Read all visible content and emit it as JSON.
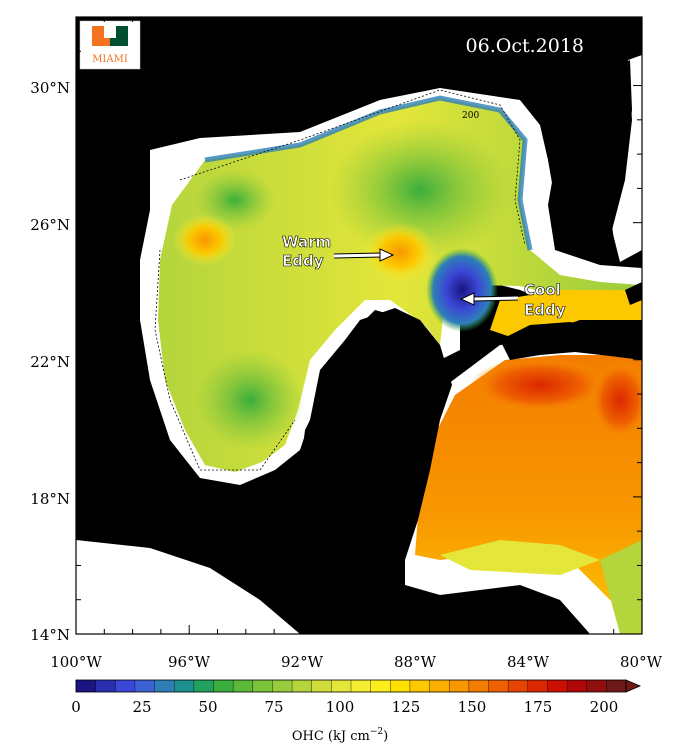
{
  "date": "06.Oct.2018",
  "logo": {
    "letter": "U",
    "text": "MIAMI"
  },
  "lat_ticks": [
    "30°N",
    "26°N",
    "22°N",
    "18°N",
    "14°N"
  ],
  "lon_ticks": [
    "100°W",
    "96°W",
    "92°W",
    "88°W",
    "84°W",
    "80°W"
  ],
  "annotations": {
    "warm_line1": "Warm",
    "warm_line2": "Eddy",
    "cool_line1": "Cool",
    "cool_line2": "Eddy"
  },
  "contour_label": "200",
  "colorbar": {
    "ticks": [
      "0",
      "25",
      "50",
      "75",
      "100",
      "125",
      "150",
      "175",
      "200"
    ],
    "label_main": "OHC (kJ cm",
    "label_sup": "−2",
    "label_end": ")",
    "colors": [
      "#1a1580",
      "#2a2fb0",
      "#3b47d6",
      "#3d62d6",
      "#2e7fb8",
      "#1f8f90",
      "#22a060",
      "#3aae3c",
      "#5cb838",
      "#7ac33a",
      "#98cc3c",
      "#b4d53c",
      "#cedd3c",
      "#e4e63a",
      "#f4ee32",
      "#fcee1c",
      "#fde000",
      "#fdc800",
      "#fbb000",
      "#f89800",
      "#f47c00",
      "#ee6000",
      "#e64400",
      "#dc2800",
      "#cc1000",
      "#b00808",
      "#901010",
      "#6e1818"
    ]
  }
}
